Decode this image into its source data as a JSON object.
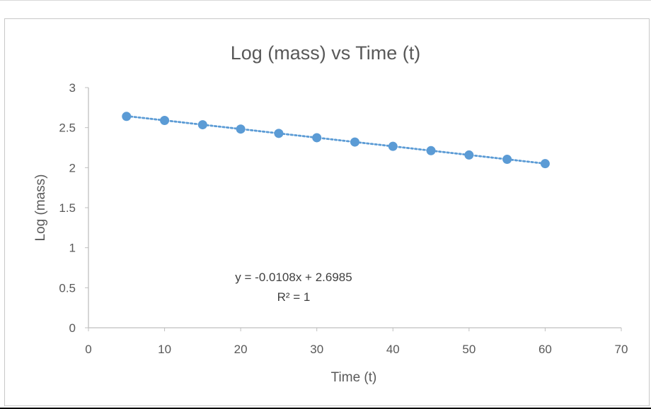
{
  "chart_data": {
    "type": "scatter",
    "title": "Log (mass) vs Time (t)",
    "xlabel": "Time (t)",
    "ylabel": "Log (mass)",
    "xlim": [
      0,
      70
    ],
    "ylim": [
      0,
      3
    ],
    "xticks": [
      "0",
      "10",
      "20",
      "30",
      "40",
      "50",
      "60",
      "70"
    ],
    "yticks": [
      "0",
      "0.5",
      "1",
      "1.5",
      "2",
      "2.5",
      "3"
    ],
    "grid": false,
    "legend": "none",
    "marker_color": "#5B9BD5",
    "trendline": {
      "type": "linear",
      "style": "dotted",
      "slope": -0.0108,
      "intercept": 2.6985,
      "equation_label": "y = -0.0108x + 2.6985",
      "r2_label": "R² = 1"
    },
    "x": [
      5,
      10,
      15,
      20,
      25,
      30,
      35,
      40,
      45,
      50,
      55,
      60
    ],
    "y": [
      2.64,
      2.59,
      2.536,
      2.482,
      2.428,
      2.374,
      2.32,
      2.266,
      2.212,
      2.158,
      2.104,
      2.05
    ]
  }
}
